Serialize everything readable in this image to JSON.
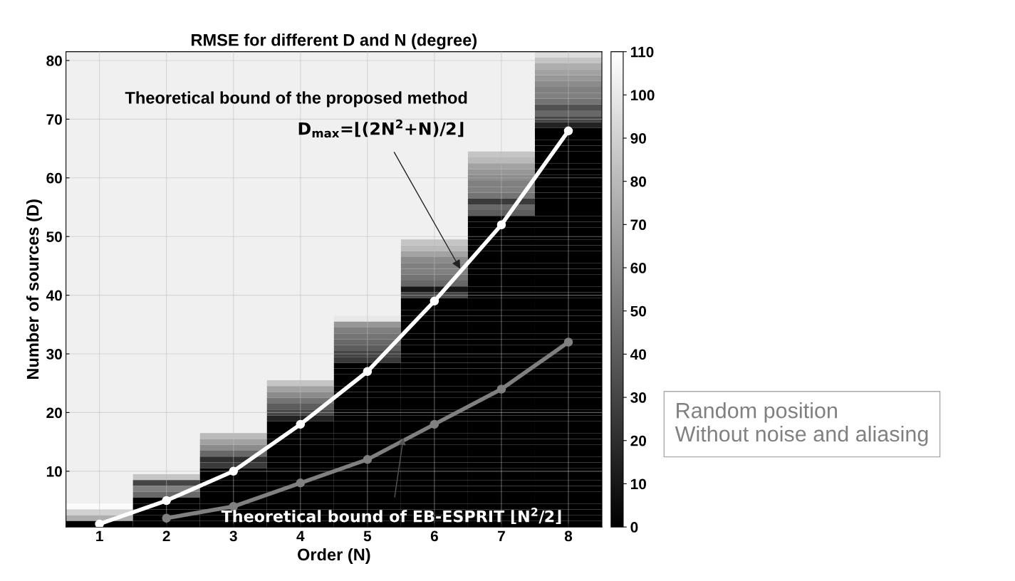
{
  "chart_data": {
    "type": "heatmap",
    "title": "RMSE for different D and N (degree)",
    "xlabel": "Order (N)",
    "ylabel": "Number of sources (D)",
    "xlim": [
      0.5,
      8.5
    ],
    "xticks": [
      1,
      2,
      3,
      4,
      5,
      6,
      7,
      8
    ],
    "ylim": [
      0.5,
      81.5
    ],
    "yticks": [
      10,
      20,
      30,
      40,
      50,
      60,
      70,
      80
    ],
    "clim": [
      0,
      110
    ],
    "cticks": [
      0,
      10,
      20,
      30,
      40,
      50,
      60,
      70,
      80,
      90,
      100,
      110
    ],
    "grid": true,
    "cells": [
      [
        null,
        null,
        null,
        null,
        null,
        null,
        null,
        95
      ],
      [
        null,
        null,
        null,
        null,
        null,
        null,
        null,
        85
      ],
      [
        null,
        null,
        null,
        null,
        null,
        null,
        null,
        75
      ],
      [
        null,
        null,
        null,
        null,
        null,
        null,
        null,
        70
      ],
      [
        null,
        null,
        null,
        null,
        null,
        null,
        null,
        65
      ],
      [
        null,
        null,
        null,
        null,
        null,
        null,
        null,
        60
      ],
      [
        null,
        null,
        null,
        null,
        null,
        null,
        null,
        55
      ],
      [
        null,
        null,
        null,
        null,
        null,
        null,
        null,
        55
      ],
      [
        null,
        null,
        null,
        null,
        null,
        null,
        null,
        50
      ],
      [
        null,
        null,
        null,
        null,
        null,
        null,
        null,
        35
      ],
      [
        null,
        null,
        null,
        null,
        null,
        null,
        null,
        45
      ],
      [
        null,
        null,
        null,
        null,
        null,
        null,
        null,
        30
      ],
      [
        null,
        null,
        null,
        null,
        null,
        null,
        null,
        15
      ],
      [
        null,
        null,
        null,
        null,
        null,
        null,
        null,
        0
      ],
      [
        null,
        null,
        null,
        null,
        null,
        null,
        null,
        0
      ],
      [
        null,
        null,
        null,
        null,
        null,
        null,
        null,
        0
      ],
      [
        null,
        null,
        null,
        null,
        null,
        null,
        null,
        0
      ],
      [
        null,
        null,
        null,
        null,
        null,
        null,
        85,
        0
      ],
      [
        null,
        null,
        null,
        null,
        null,
        null,
        80,
        0
      ],
      [
        null,
        null,
        null,
        null,
        null,
        null,
        70,
        0
      ],
      [
        null,
        null,
        null,
        null,
        null,
        null,
        65,
        0
      ],
      [
        null,
        null,
        null,
        null,
        null,
        null,
        60,
        0
      ],
      [
        null,
        null,
        null,
        null,
        null,
        null,
        55,
        0
      ],
      [
        null,
        null,
        null,
        null,
        null,
        null,
        55,
        0
      ],
      [
        null,
        null,
        null,
        null,
        null,
        null,
        50,
        0
      ],
      [
        null,
        null,
        null,
        null,
        null,
        null,
        25,
        0
      ],
      [
        null,
        null,
        null,
        null,
        null,
        null,
        45,
        0
      ],
      [
        null,
        null,
        null,
        null,
        null,
        null,
        40,
        0
      ],
      [
        null,
        null,
        null,
        null,
        null,
        null,
        0,
        0
      ],
      [
        null,
        null,
        null,
        null,
        null,
        null,
        0,
        0
      ],
      [
        null,
        null,
        null,
        null,
        null,
        null,
        0,
        0
      ],
      [
        null,
        null,
        null,
        null,
        null,
        null,
        0,
        0
      ],
      [
        null,
        null,
        null,
        null,
        null,
        85,
        0,
        0
      ],
      [
        null,
        null,
        null,
        null,
        null,
        80,
        0,
        0
      ],
      [
        null,
        null,
        null,
        null,
        null,
        70,
        0,
        0
      ],
      [
        null,
        null,
        null,
        null,
        null,
        60,
        0,
        0
      ],
      [
        null,
        null,
        null,
        null,
        null,
        55,
        0,
        0
      ],
      [
        null,
        null,
        null,
        null,
        null,
        55,
        0,
        0
      ],
      [
        null,
        null,
        null,
        null,
        null,
        50,
        0,
        0
      ],
      [
        null,
        null,
        null,
        null,
        null,
        45,
        0,
        0
      ],
      [
        null,
        null,
        null,
        null,
        null,
        10,
        0,
        0
      ],
      [
        null,
        null,
        null,
        null,
        null,
        30,
        0,
        0
      ],
      [
        null,
        null,
        null,
        null,
        null,
        0,
        0,
        0
      ],
      [
        null,
        null,
        null,
        null,
        null,
        0,
        0,
        0
      ],
      [
        null,
        null,
        null,
        null,
        null,
        0,
        0,
        0
      ],
      [
        null,
        null,
        null,
        null,
        100,
        0,
        0,
        0
      ],
      [
        null,
        null,
        null,
        null,
        65,
        0,
        0,
        0
      ],
      [
        null,
        null,
        null,
        null,
        55,
        0,
        0,
        0
      ],
      [
        null,
        null,
        null,
        null,
        50,
        0,
        0,
        0
      ],
      [
        null,
        null,
        null,
        null,
        45,
        0,
        0,
        0
      ],
      [
        null,
        null,
        null,
        null,
        40,
        0,
        0,
        0
      ],
      [
        null,
        null,
        null,
        null,
        30,
        0,
        0,
        0
      ],
      [
        null,
        null,
        null,
        null,
        25,
        0,
        0,
        0
      ],
      [
        null,
        null,
        null,
        null,
        0,
        0,
        0,
        0
      ],
      [
        null,
        null,
        null,
        null,
        0,
        0,
        0,
        0
      ],
      [
        null,
        null,
        null,
        null,
        0,
        0,
        0,
        0
      ],
      [
        null,
        null,
        null,
        85,
        0,
        0,
        0,
        0
      ],
      [
        null,
        null,
        null,
        70,
        0,
        0,
        0,
        0
      ],
      [
        null,
        null,
        null,
        60,
        0,
        0,
        0,
        0
      ],
      [
        null,
        null,
        null,
        50,
        0,
        0,
        0,
        0
      ],
      [
        null,
        null,
        null,
        40,
        0,
        0,
        0,
        0
      ],
      [
        null,
        null,
        null,
        30,
        0,
        0,
        0,
        0
      ],
      [
        null,
        null,
        null,
        15,
        0,
        0,
        0,
        0
      ],
      [
        null,
        null,
        null,
        0,
        0,
        0,
        0,
        0
      ],
      [
        null,
        null,
        null,
        0,
        0,
        0,
        0,
        0
      ],
      [
        null,
        null,
        80,
        0,
        0,
        0,
        0,
        0
      ],
      [
        null,
        null,
        70,
        0,
        0,
        0,
        0,
        0
      ],
      [
        null,
        null,
        60,
        0,
        0,
        0,
        0,
        0
      ],
      [
        null,
        null,
        45,
        0,
        0,
        0,
        0,
        0
      ],
      [
        null,
        null,
        20,
        0,
        0,
        0,
        0,
        0
      ],
      [
        null,
        null,
        25,
        0,
        0,
        0,
        0,
        0
      ],
      [
        null,
        null,
        0,
        0,
        0,
        0,
        0,
        0
      ],
      [
        null,
        85,
        0,
        0,
        0,
        0,
        0,
        0
      ],
      [
        null,
        30,
        0,
        0,
        0,
        0,
        0,
        0
      ],
      [
        null,
        55,
        0,
        0,
        0,
        0,
        0,
        0
      ],
      [
        null,
        45,
        0,
        0,
        0,
        0,
        0,
        0
      ],
      [
        null,
        0,
        0,
        0,
        0,
        0,
        0,
        0
      ],
      [
        108,
        0,
        0,
        0,
        0,
        0,
        0,
        0
      ],
      [
        90,
        0,
        0,
        0,
        0,
        0,
        0,
        0
      ],
      [
        75,
        0,
        0,
        0,
        0,
        0,
        0,
        0
      ],
      [
        0,
        0,
        0,
        0,
        0,
        0,
        0,
        0
      ]
    ],
    "series": [
      {
        "type": "line",
        "color": "#ffffff",
        "x": [
          1,
          2,
          3,
          4,
          5,
          6,
          7,
          8
        ],
        "values": [
          1,
          5,
          10,
          18,
          27,
          39,
          52,
          68
        ]
      },
      {
        "type": "line",
        "color": "#808080",
        "x": [
          2,
          3,
          4,
          5,
          6,
          7,
          8
        ],
        "values": [
          2,
          4,
          8,
          12,
          18,
          24,
          32
        ]
      }
    ],
    "marker": "circle",
    "line_style": "solid",
    "annotations": [
      "Theoretical bound of the proposed method",
      {
        "text": "D$_{max}$=⌊(2N$^{2}$+N)/2⌋",
        "x": 6.4,
        "y": 44.2
      },
      {
        "text": "Theoretical bound of EB-ESPRIT ⌊N$^{2}$/2⌋",
        "x": 5.54,
        "y": 16
      },
      "Random position\nWithout noise and aliasing"
    ]
  }
}
